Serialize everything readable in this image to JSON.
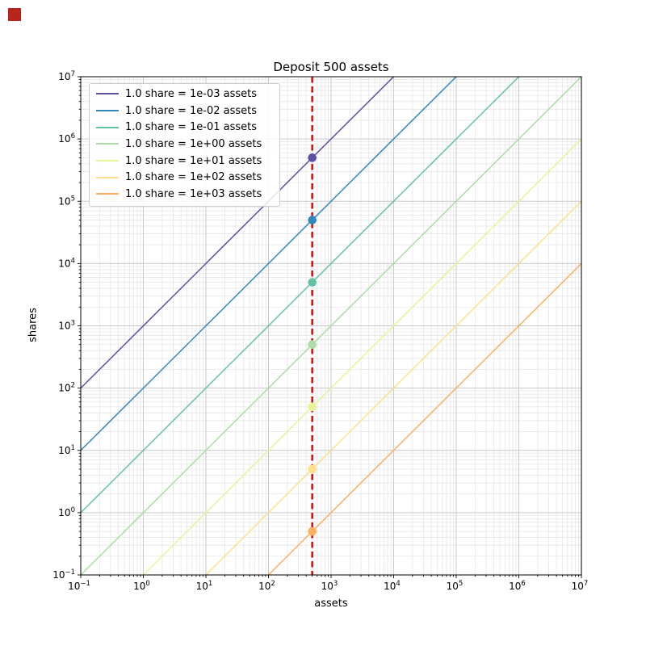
{
  "corner_marker": {
    "color": "#b5271d"
  },
  "chart_data": {
    "type": "line",
    "title": "Deposit 500 assets",
    "xlabel": "assets",
    "ylabel": "shares",
    "xscale": "log",
    "yscale": "log",
    "xlim": [
      0.1,
      10000000
    ],
    "ylim": [
      0.1,
      10000000
    ],
    "x_tick_exponents": [
      -1,
      0,
      1,
      2,
      3,
      4,
      5,
      6,
      7
    ],
    "y_tick_exponents": [
      -1,
      0,
      1,
      2,
      3,
      4,
      5,
      6,
      7
    ],
    "grid": "both",
    "legend_position": "upper left",
    "deposit_assets": 500,
    "vline": {
      "x": 500,
      "color": "#e01010",
      "style": "dashed"
    },
    "series": [
      {
        "label": "1.0 share = 1e-03 assets",
        "assets_per_share": 0.001,
        "color": "#5e4fa2",
        "marker_point": {
          "assets": 500,
          "shares": 500000
        }
      },
      {
        "label": "1.0 share = 1e-02 assets",
        "assets_per_share": 0.01,
        "color": "#3288bd",
        "marker_point": {
          "assets": 500,
          "shares": 50000
        }
      },
      {
        "label": "1.0 share = 1e-01 assets",
        "assets_per_share": 0.1,
        "color": "#66c2a5",
        "marker_point": {
          "assets": 500,
          "shares": 5000
        }
      },
      {
        "label": "1.0 share = 1e+00 assets",
        "assets_per_share": 1,
        "color": "#abdda4",
        "marker_point": {
          "assets": 500,
          "shares": 500
        }
      },
      {
        "label": "1.0 share = 1e+01 assets",
        "assets_per_share": 10,
        "color": "#e6f598",
        "marker_point": {
          "assets": 500,
          "shares": 50
        }
      },
      {
        "label": "1.0 share = 1e+02 assets",
        "assets_per_share": 100,
        "color": "#fee08b",
        "marker_point": {
          "assets": 500,
          "shares": 5
        }
      },
      {
        "label": "1.0 share = 1e+03 assets",
        "assets_per_share": 1000,
        "color": "#fdae61",
        "marker_point": {
          "assets": 500,
          "shares": 0.5
        }
      }
    ],
    "plot_style": {
      "major_grid_color": "#c9c9c9",
      "minor_grid_color": "#e6e6e6",
      "spine_color": "#000000",
      "line_width": 1.5,
      "marker_radius": 5.3
    }
  }
}
